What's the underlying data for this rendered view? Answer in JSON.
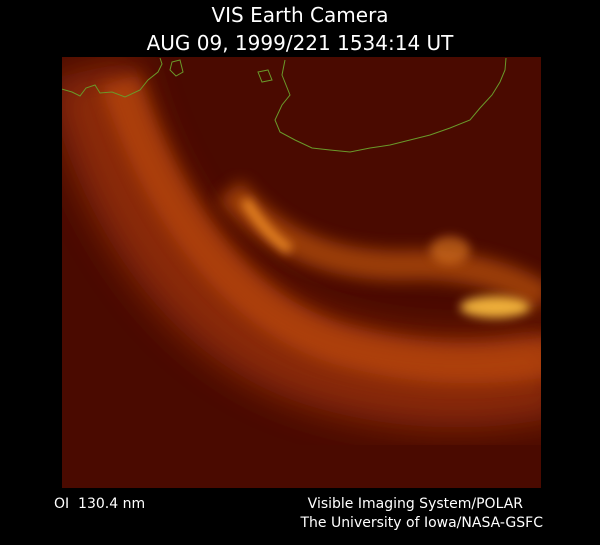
{
  "header": {
    "title": "VIS Earth Camera",
    "timestamp": "AUG 09, 1999/221 1534:14 UT"
  },
  "footer": {
    "filter": "OI  130.4 nm",
    "instrument": "Visible Imaging System/POLAR",
    "institution": "The University of Iowa/NASA-GSFC"
  }
}
